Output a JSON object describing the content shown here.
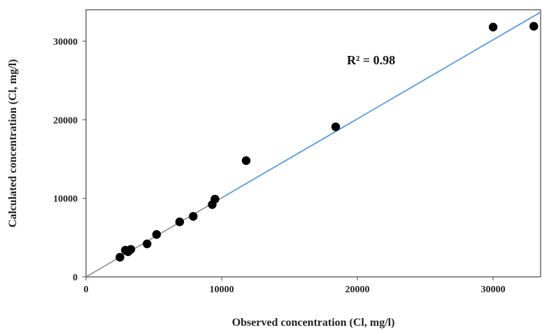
{
  "chart_data": {
    "type": "scatter",
    "title": "",
    "xlabel": "Observed concentration (Cl, mg/l)",
    "ylabel": "Calculated concentration (Cl, mg/l)",
    "xlim": [
      0,
      33500
    ],
    "ylim": [
      0,
      34000
    ],
    "x_ticks": [
      0,
      10000,
      20000,
      30000
    ],
    "y_ticks": [
      0,
      10000,
      20000,
      30000
    ],
    "x_tick_labels": [
      "0",
      "10000",
      "20000",
      "30000"
    ],
    "y_tick_labels": [
      "0",
      "10000",
      "20000",
      "30000"
    ],
    "grid": false,
    "legend": "none",
    "annotation": "R² = 0.98",
    "series": [
      {
        "color": "#000000",
        "points": [
          {
            "x": 2500,
            "y": 2500
          },
          {
            "x": 2900,
            "y": 3400
          },
          {
            "x": 3100,
            "y": 3200
          },
          {
            "x": 3300,
            "y": 3500
          },
          {
            "x": 4500,
            "y": 4200
          },
          {
            "x": 5200,
            "y": 5400
          },
          {
            "x": 6900,
            "y": 7000
          },
          {
            "x": 7900,
            "y": 7700
          },
          {
            "x": 9300,
            "y": 9200
          },
          {
            "x": 9500,
            "y": 9900
          },
          {
            "x": 11800,
            "y": 14800
          },
          {
            "x": 18400,
            "y": 19100
          },
          {
            "x": 30000,
            "y": 31800
          },
          {
            "x": 33000,
            "y": 31900
          }
        ]
      }
    ],
    "reference_line": {
      "x": [
        0,
        33500
      ],
      "y": [
        0,
        33700
      ],
      "color_lower": "#7f7f7f",
      "color_upper": "#5b9bd5",
      "split_x": 10000
    }
  }
}
